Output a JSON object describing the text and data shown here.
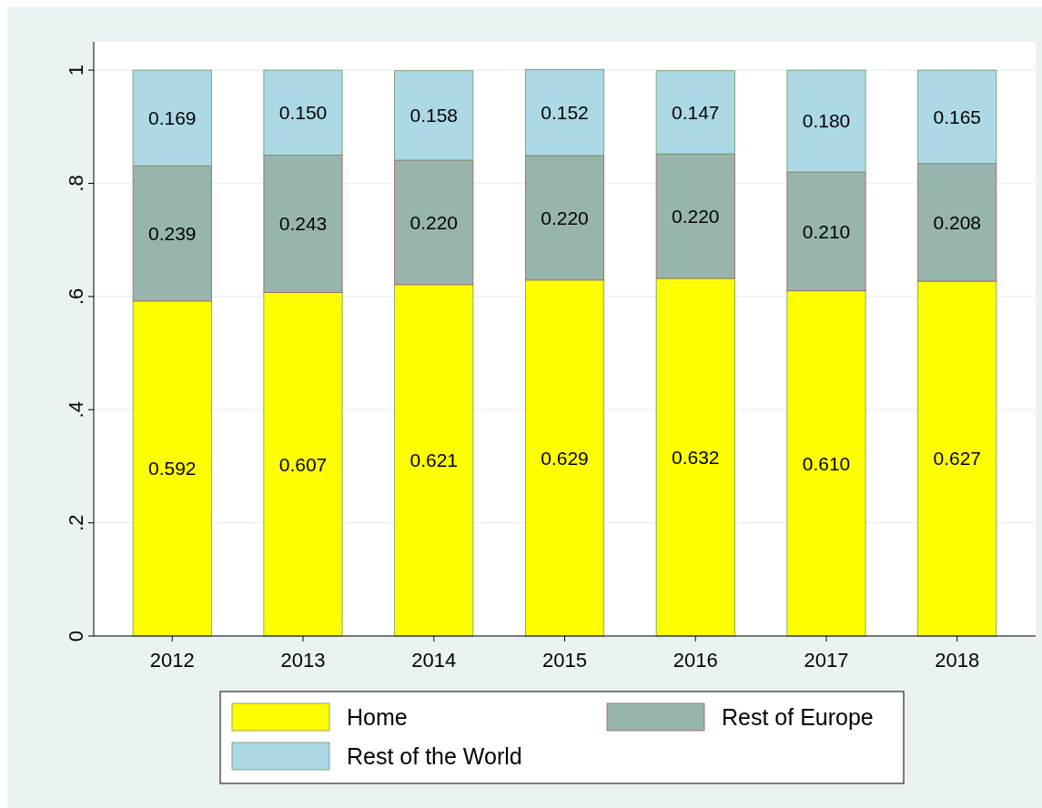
{
  "chart_data": {
    "type": "bar",
    "stacked": true,
    "categories": [
      "2012",
      "2013",
      "2014",
      "2015",
      "2016",
      "2017",
      "2018"
    ],
    "series": [
      {
        "name": "Home",
        "color": "#ffff00",
        "values": [
          0.592,
          0.607,
          0.621,
          0.629,
          0.632,
          0.61,
          0.627
        ],
        "value_labels": [
          "0.592",
          "0.607",
          "0.621",
          "0.629",
          "0.632",
          "0.610",
          "0.627"
        ]
      },
      {
        "name": "Rest of Europe",
        "color": "#97b5ad",
        "values": [
          0.239,
          0.243,
          0.22,
          0.22,
          0.22,
          0.21,
          0.208
        ],
        "value_labels": [
          "0.239",
          "0.243",
          "0.220",
          "0.220",
          "0.220",
          "0.210",
          "0.208"
        ]
      },
      {
        "name": "Rest of the World",
        "color": "#add8e6",
        "values": [
          0.169,
          0.15,
          0.158,
          0.152,
          0.147,
          0.18,
          0.165
        ],
        "value_labels": [
          "0.169",
          "0.150",
          "0.158",
          "0.152",
          "0.147",
          "0.180",
          "0.165"
        ]
      }
    ],
    "ylim": [
      0,
      1.05
    ],
    "yticks": [
      0,
      {
        "value": 0.2,
        "label": ".2"
      },
      {
        "value": 0.4,
        "label": ".4"
      },
      {
        "value": 0.6,
        "label": ".6"
      },
      {
        "value": 0.8,
        "label": ".8"
      },
      1
    ],
    "grid": "y",
    "legend": "bottom"
  }
}
